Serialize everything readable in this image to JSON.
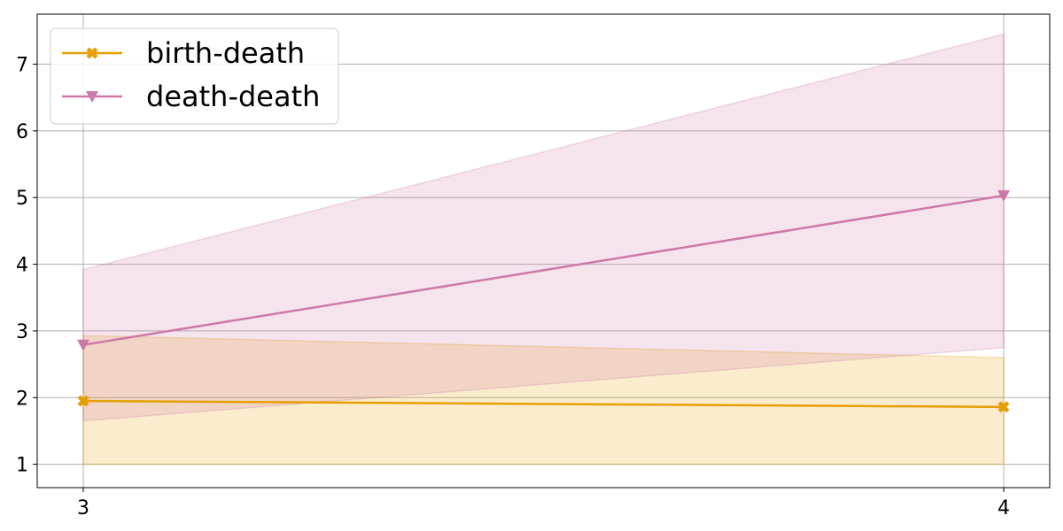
{
  "chart_data": {
    "type": "line",
    "x": [
      3,
      4
    ],
    "xticks": [
      "3",
      "4"
    ],
    "yticks": [
      "1",
      "2",
      "3",
      "4",
      "5",
      "6",
      "7"
    ],
    "ylim": [
      0.65,
      7.75
    ],
    "xlim": [
      2.95,
      4.05
    ],
    "grid": true,
    "legend_position": "top-left",
    "series": [
      {
        "name": "birth-death",
        "color": "#E69F00",
        "marker": "X",
        "values": [
          1.95,
          1.86
        ],
        "band_low": [
          1.0,
          1.0
        ],
        "band_high": [
          2.93,
          2.6
        ]
      },
      {
        "name": "death-death",
        "color": "#CC79A7",
        "marker": "triangle-down",
        "values": [
          2.79,
          5.03
        ],
        "band_low": [
          1.65,
          2.75
        ],
        "band_high": [
          3.92,
          7.45
        ]
      }
    ]
  }
}
